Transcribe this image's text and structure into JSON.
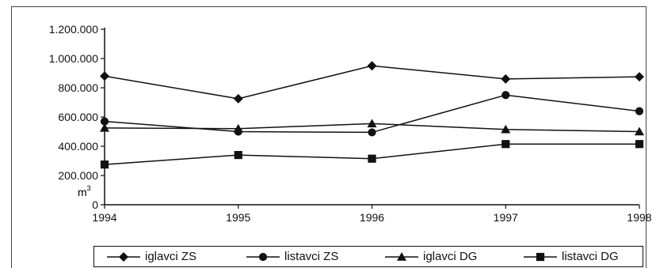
{
  "chart_data": {
    "type": "line",
    "title": "",
    "xlabel": "",
    "ylabel": "m",
    "ylabel_superscript": "3",
    "categories": [
      "1994",
      "1995",
      "1996",
      "1997",
      "1998"
    ],
    "ylim": [
      0,
      1200000
    ],
    "yticks": [
      0,
      200000,
      400000,
      600000,
      800000,
      1000000,
      1200000
    ],
    "ytick_labels": [
      "0",
      "200.000",
      "400.000",
      "600.000",
      "800.000",
      "1.000.000",
      "1.200.000"
    ],
    "grid": false,
    "legend_position": "bottom",
    "line_color": "#111111",
    "series": [
      {
        "name": "iglavci ZS",
        "marker": "diamond",
        "values": [
          880000,
          725000,
          950000,
          860000,
          875000
        ]
      },
      {
        "name": "listavci ZS",
        "marker": "circle",
        "values": [
          570000,
          500000,
          495000,
          750000,
          640000
        ]
      },
      {
        "name": "iglavci DG",
        "marker": "triangle",
        "values": [
          525000,
          520000,
          555000,
          515000,
          500000
        ]
      },
      {
        "name": "listavci DG",
        "marker": "square",
        "values": [
          275000,
          340000,
          315000,
          415000,
          415000
        ]
      }
    ]
  }
}
